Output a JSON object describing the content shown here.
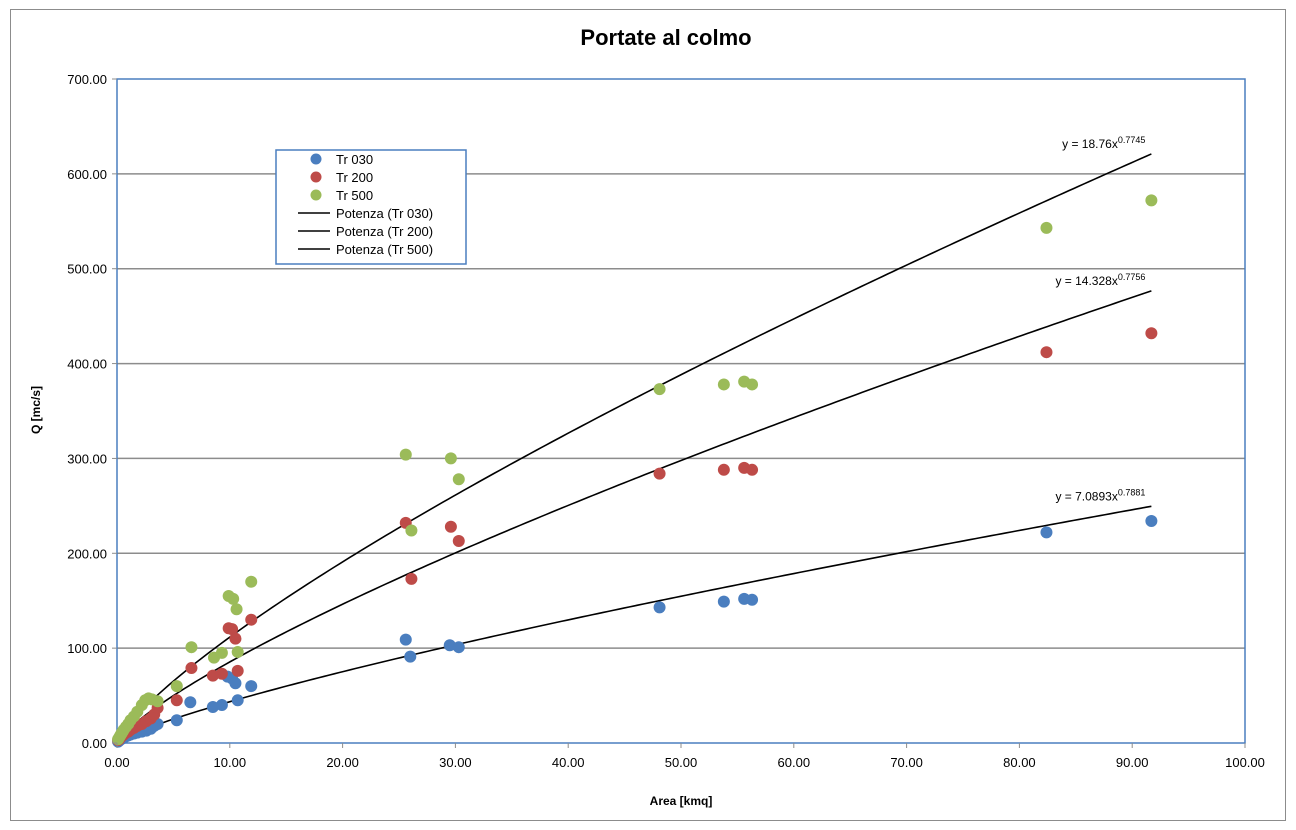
{
  "chart_data": {
    "type": "scatter",
    "title": "Portate al colmo",
    "xlabel": "Area [kmq]",
    "ylabel": "Q [mc/s]",
    "xlim": [
      0,
      100
    ],
    "ylim": [
      0,
      700
    ],
    "x_ticks": [
      "0.00",
      "10.00",
      "20.00",
      "30.00",
      "40.00",
      "50.00",
      "60.00",
      "70.00",
      "80.00",
      "90.00",
      "100.00"
    ],
    "y_ticks": [
      "0.00",
      "100.00",
      "200.00",
      "300.00",
      "400.00",
      "500.00",
      "600.00",
      "700.00"
    ],
    "grid": "horizontal",
    "legend_position": "top-left",
    "series": [
      {
        "name": "Tr 030",
        "color": "#4a7ebf",
        "points": [
          [
            0.1,
            1.5
          ],
          [
            0.2,
            2.5
          ],
          [
            0.3,
            3.5
          ],
          [
            0.4,
            4.5
          ],
          [
            0.5,
            5
          ],
          [
            0.6,
            5.5
          ],
          [
            0.8,
            7
          ],
          [
            1.0,
            8
          ],
          [
            1.2,
            9
          ],
          [
            1.5,
            10
          ],
          [
            1.8,
            11
          ],
          [
            2.2,
            12
          ],
          [
            2.6,
            13
          ],
          [
            3.0,
            15
          ],
          [
            3.3,
            18
          ],
          [
            3.6,
            20
          ],
          [
            5.3,
            24
          ],
          [
            6.5,
            43
          ],
          [
            8.5,
            38
          ],
          [
            9.3,
            40
          ],
          [
            9.8,
            70
          ],
          [
            10.2,
            68
          ],
          [
            10.5,
            63
          ],
          [
            10.7,
            45
          ],
          [
            11.9,
            60
          ],
          [
            25.6,
            109
          ],
          [
            26.0,
            91
          ],
          [
            29.5,
            103
          ],
          [
            30.3,
            101
          ],
          [
            48.1,
            143
          ],
          [
            53.8,
            149
          ],
          [
            55.6,
            152
          ],
          [
            56.3,
            151
          ],
          [
            82.4,
            222
          ],
          [
            91.7,
            234
          ]
        ]
      },
      {
        "name": "Tr 200",
        "color": "#be4b48",
        "points": [
          [
            0.1,
            3
          ],
          [
            0.2,
            4
          ],
          [
            0.3,
            6
          ],
          [
            0.4,
            7
          ],
          [
            0.5,
            8
          ],
          [
            0.6,
            9
          ],
          [
            0.8,
            11
          ],
          [
            1.0,
            12
          ],
          [
            1.2,
            14
          ],
          [
            1.5,
            16
          ],
          [
            1.8,
            18
          ],
          [
            2.2,
            20
          ],
          [
            2.6,
            23
          ],
          [
            3.0,
            26
          ],
          [
            3.3,
            30
          ],
          [
            3.6,
            37
          ],
          [
            5.3,
            45
          ],
          [
            6.6,
            79
          ],
          [
            8.5,
            71
          ],
          [
            9.3,
            73
          ],
          [
            9.9,
            121
          ],
          [
            10.2,
            120
          ],
          [
            10.5,
            110
          ],
          [
            10.7,
            76
          ],
          [
            11.9,
            130
          ],
          [
            25.6,
            232
          ],
          [
            26.1,
            173
          ],
          [
            29.6,
            228
          ],
          [
            30.3,
            213
          ],
          [
            48.1,
            284
          ],
          [
            53.8,
            288
          ],
          [
            55.6,
            290
          ],
          [
            56.3,
            288
          ],
          [
            82.4,
            412
          ],
          [
            91.7,
            432
          ]
        ]
      },
      {
        "name": "Tr 500",
        "color": "#9bbb59",
        "points": [
          [
            0.1,
            4
          ],
          [
            0.2,
            6
          ],
          [
            0.3,
            8
          ],
          [
            0.4,
            10
          ],
          [
            0.5,
            12
          ],
          [
            0.6,
            14
          ],
          [
            0.8,
            17
          ],
          [
            1.0,
            20
          ],
          [
            1.2,
            24
          ],
          [
            1.5,
            28
          ],
          [
            1.8,
            33
          ],
          [
            2.2,
            40
          ],
          [
            2.5,
            45
          ],
          [
            2.8,
            47
          ],
          [
            3.1,
            46
          ],
          [
            3.6,
            44
          ],
          [
            5.3,
            60
          ],
          [
            6.6,
            101
          ],
          [
            8.6,
            90
          ],
          [
            9.3,
            95
          ],
          [
            9.9,
            155
          ],
          [
            10.3,
            152
          ],
          [
            10.6,
            141
          ],
          [
            10.7,
            96
          ],
          [
            11.9,
            170
          ],
          [
            25.6,
            304
          ],
          [
            26.1,
            224
          ],
          [
            29.6,
            300
          ],
          [
            30.3,
            278
          ],
          [
            48.1,
            373
          ],
          [
            53.8,
            378
          ],
          [
            55.6,
            381
          ],
          [
            56.3,
            378
          ],
          [
            82.4,
            543
          ],
          [
            91.7,
            572
          ]
        ]
      }
    ],
    "trendlines": [
      {
        "name": "Potenza (Tr 030)",
        "a": 7.0893,
        "b": 0.7881,
        "equation": "y = 7.0893x",
        "exponent": "0.7881",
        "color": "#000000"
      },
      {
        "name": "Potenza (Tr 200)",
        "a": 14.328,
        "b": 0.7756,
        "equation": "y = 14.328x",
        "exponent": "0.7756",
        "color": "#000000"
      },
      {
        "name": "Potenza (Tr 500)",
        "a": 18.76,
        "b": 0.7745,
        "equation": "y = 18.76x",
        "exponent": "0.7745",
        "color": "#000000"
      }
    ],
    "trend_x_range": [
      0,
      91.7
    ]
  }
}
